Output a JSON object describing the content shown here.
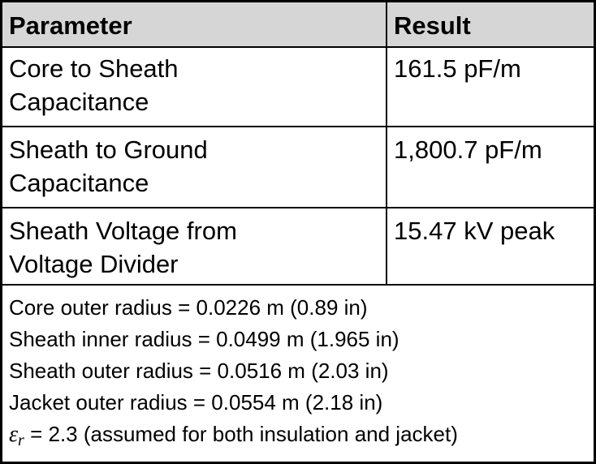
{
  "table": {
    "header": [
      "Parameter",
      "Result"
    ],
    "rows": [
      [
        [
          "Core to Sheath",
          "Capacitance"
        ],
        "161.5 pF/m"
      ],
      [
        [
          "Sheath to Ground",
          "Capacitance"
        ],
        "1,800.7 pF/m"
      ],
      [
        [
          "Sheath Voltage from",
          "Voltage Divider"
        ],
        "15.47 kV peak"
      ]
    ],
    "notes": [
      "Core outer radius = 0.0226 m (0.89 in)",
      "Sheath inner radius = 0.0499 m (1.965 in)",
      "Sheath outer radius = 0.0516 m (2.03 in)",
      "Jacket outer radius = 0.0554 m (2.18 in)"
    ],
    "permittivity": {
      "symbol": "ε",
      "subscript": "r",
      "text": "= 2.3  (assumed for both insulation and jacket)"
    }
  }
}
